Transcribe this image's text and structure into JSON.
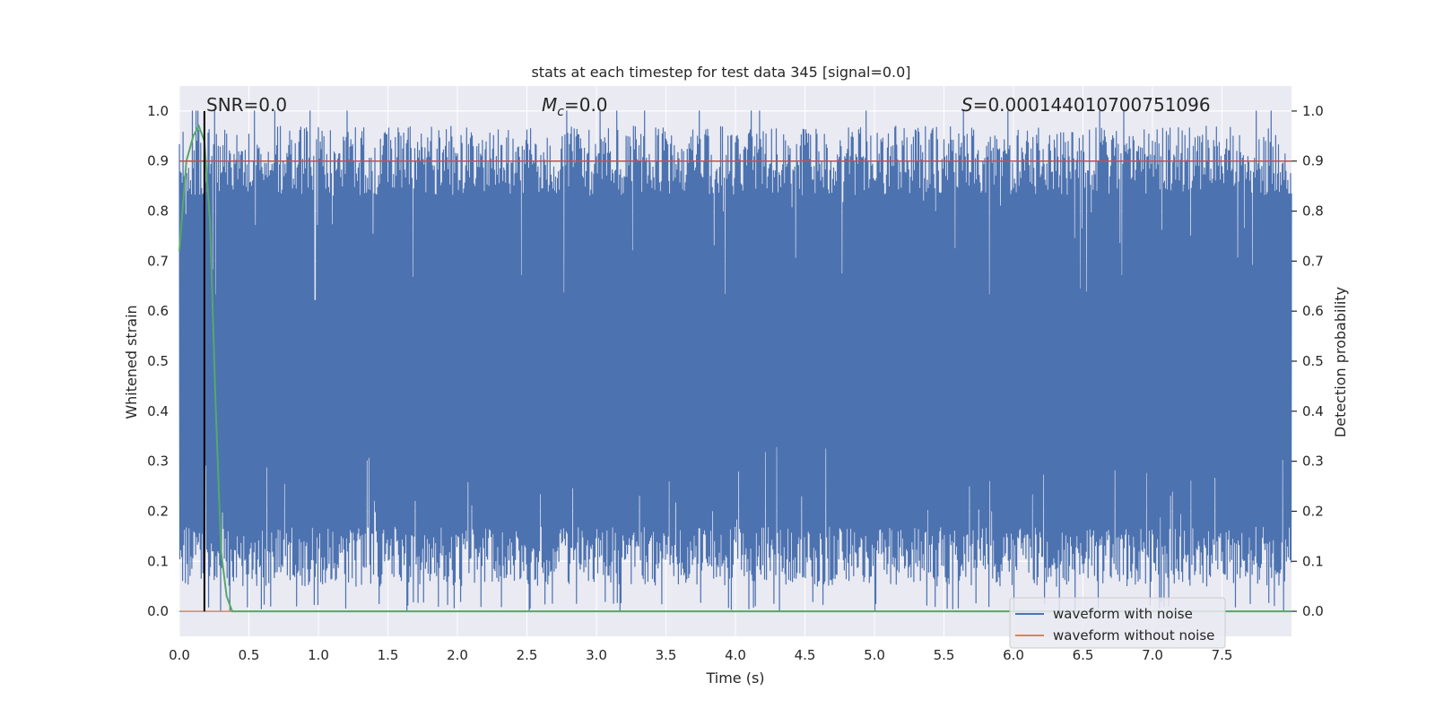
{
  "chart_data": {
    "type": "line",
    "title": "stats at each timestep for test data 345 [signal=0.0]",
    "xlabel": "Time (s)",
    "ylabel_left": "Whitened strain",
    "ylabel_right": "Detection probability",
    "xlim": [
      0.0,
      8.0
    ],
    "ylim": [
      -0.05,
      1.05
    ],
    "x_ticks": [
      0.0,
      0.5,
      1.0,
      1.5,
      2.0,
      2.5,
      3.0,
      3.5,
      4.0,
      4.5,
      5.0,
      5.5,
      6.0,
      6.5,
      7.0,
      7.5
    ],
    "x_tick_labels": [
      "0.0",
      "0.5",
      "1.0",
      "1.5",
      "2.0",
      "2.5",
      "3.0",
      "3.5",
      "4.0",
      "4.5",
      "5.0",
      "5.5",
      "6.0",
      "6.5",
      "7.0",
      "7.5"
    ],
    "y_ticks": [
      0.0,
      0.1,
      0.2,
      0.3,
      0.4,
      0.5,
      0.6,
      0.7,
      0.8,
      0.9,
      1.0
    ],
    "y_tick_labels": [
      "0.0",
      "0.1",
      "0.2",
      "0.3",
      "0.4",
      "0.5",
      "0.6",
      "0.7",
      "0.8",
      "0.9",
      "1.0"
    ],
    "grid": true,
    "legend_position": "bottom-right",
    "annotations": {
      "snr": "SNR=0.0",
      "mc_symbol": "M",
      "mc_sub": "c",
      "mc_value": "=0.0",
      "s_symbol": "S",
      "s_value": "=0.000144010700751096"
    },
    "series": [
      {
        "name": "waveform with noise",
        "color": "#4c72b0",
        "note_values": "dense noise spanning roughly 0.0-1.0 across 0-8 s",
        "envelope": {
          "typical_min": 0.05,
          "typical_max": 0.97,
          "min": 0.0,
          "max": 1.0
        }
      },
      {
        "name": "waveform without noise",
        "color": "#dd8452",
        "x": [
          0.0,
          8.0
        ],
        "y": [
          0.0,
          0.0
        ]
      },
      {
        "color": "#55a868",
        "x": [
          0.0,
          0.05,
          0.1,
          0.14,
          0.18,
          0.22,
          0.26,
          0.3,
          0.34,
          0.38,
          0.5,
          1.0,
          2.0,
          4.0,
          8.0
        ],
        "y": [
          0.72,
          0.9,
          0.95,
          0.97,
          0.94,
          0.78,
          0.42,
          0.12,
          0.03,
          0.0,
          0.0,
          0.0,
          0.0,
          0.0,
          0.0
        ]
      },
      {
        "color": "#c44e52",
        "x": [
          0.0,
          8.0
        ],
        "y": [
          0.9,
          0.9
        ]
      },
      {
        "color": "#000000",
        "x": [
          0.18,
          0.18
        ],
        "y": [
          0.0,
          1.0
        ]
      }
    ]
  }
}
